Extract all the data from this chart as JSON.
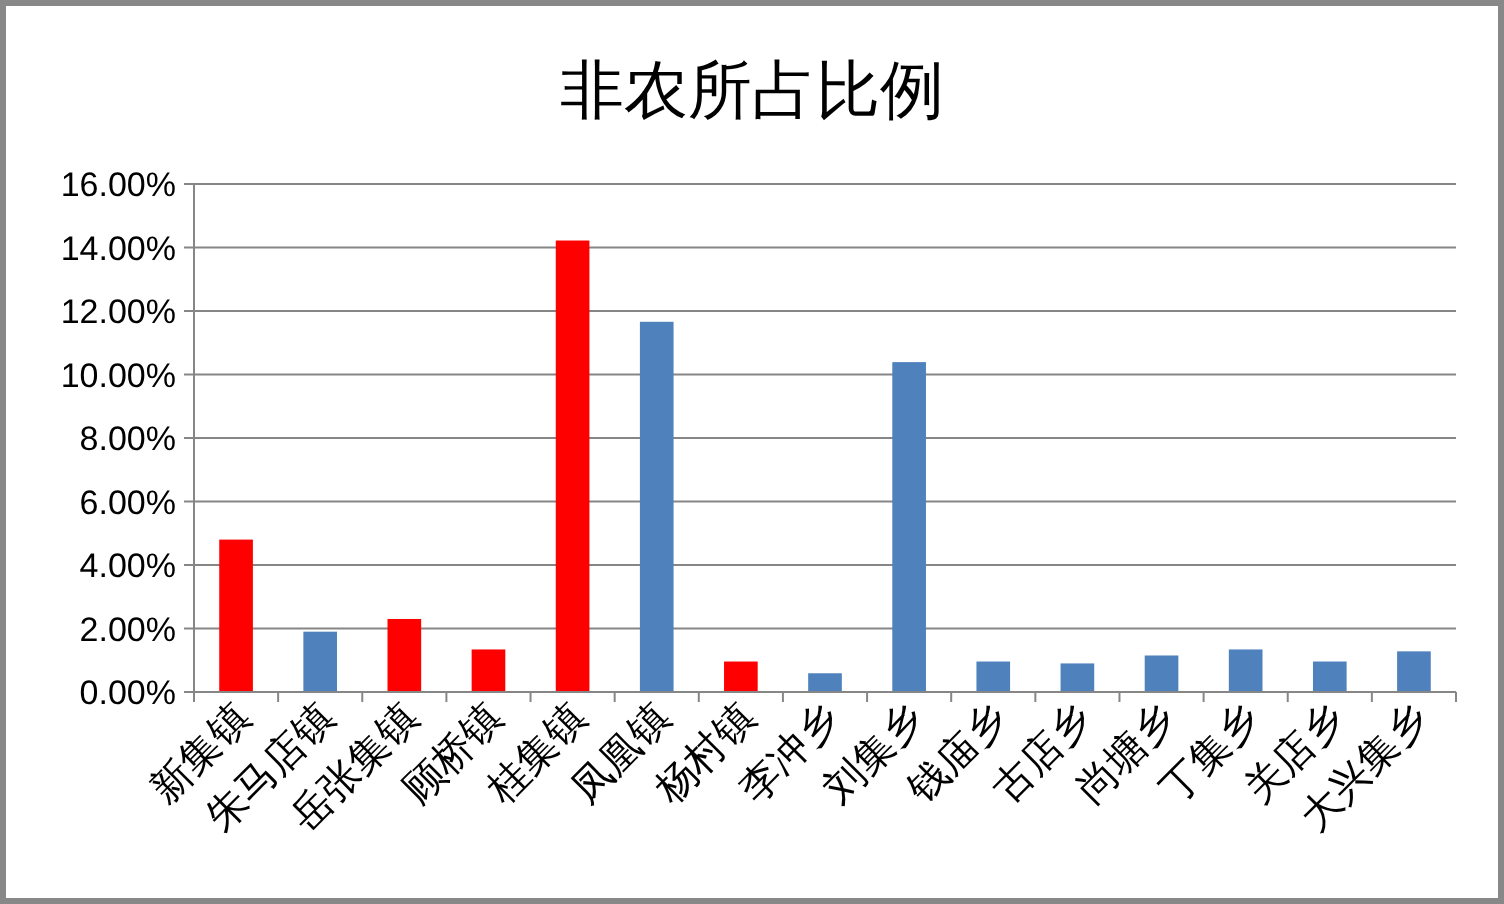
{
  "chart_data": {
    "type": "bar",
    "title": "非农所占比例",
    "categories": [
      "新集镇",
      "朱马店镇",
      "岳张集镇",
      "顾桥镇",
      "桂集镇",
      "凤凰镇",
      "杨村镇",
      "李冲乡",
      "刘集乡",
      "钱庙乡",
      "古店乡",
      "尚塘乡",
      "丁集乡",
      "关店乡",
      "大兴集乡"
    ],
    "values": [
      4.8,
      1.9,
      2.3,
      1.34,
      14.22,
      11.66,
      0.96,
      0.59,
      10.39,
      0.96,
      0.9,
      1.15,
      1.34,
      0.96,
      1.28
    ],
    "colors": [
      "#ff0000",
      "#4f81bd",
      "#ff0000",
      "#ff0000",
      "#ff0000",
      "#4f81bd",
      "#ff0000",
      "#4f81bd",
      "#4f81bd",
      "#4f81bd",
      "#4f81bd",
      "#4f81bd",
      "#4f81bd",
      "#4f81bd",
      "#4f81bd"
    ],
    "ylim": [
      0,
      16
    ],
    "yticks": [
      {
        "value": 0,
        "label": "0.00%"
      },
      {
        "value": 2,
        "label": "2.00%"
      },
      {
        "value": 4,
        "label": "4.00%"
      },
      {
        "value": 6,
        "label": "6.00%"
      },
      {
        "value": 8,
        "label": "8.00%"
      },
      {
        "value": 10,
        "label": "10.00%"
      },
      {
        "value": 12,
        "label": "12.00%"
      },
      {
        "value": 14,
        "label": "14.00%"
      },
      {
        "value": 16,
        "label": "16.00%"
      }
    ],
    "grid": "y"
  }
}
